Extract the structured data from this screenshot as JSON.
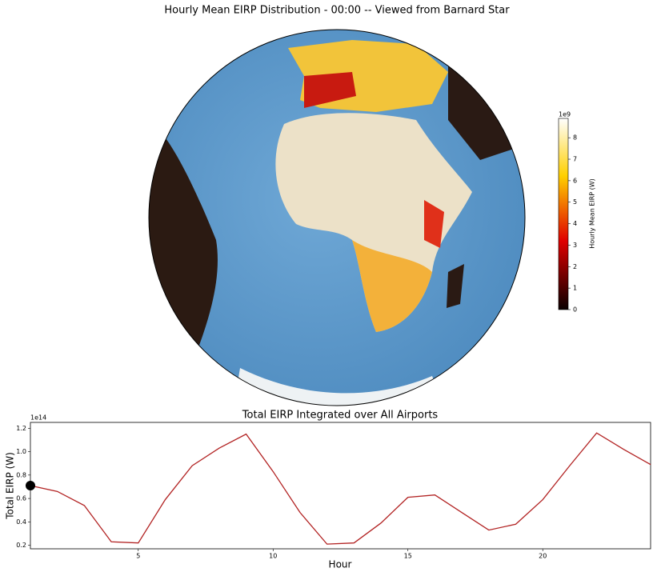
{
  "chart_data": [
    {
      "type": "map",
      "title": "Hourly Mean EIRP Distribution - 00:00 -- Viewed from Barnard Star",
      "colorbar": {
        "label": "Hourly Mean EIRP (W)",
        "offset_label": "1e9",
        "lim": [
          0,
          8.9
        ],
        "ticks": [
          0,
          1,
          2,
          3,
          4,
          5,
          6,
          7,
          8
        ]
      }
    },
    {
      "type": "line",
      "title": "Total EIRP Integrated over All Airports",
      "xlabel": "Hour",
      "ylabel": "Total EIRP (W)",
      "offset_label": "1e14",
      "x": [
        1,
        2,
        3,
        4,
        5,
        6,
        7,
        8,
        9,
        10,
        11,
        12,
        13,
        14,
        15,
        16,
        17,
        18,
        19,
        20,
        21,
        22,
        23,
        24
      ],
      "color": "#b22222",
      "values": [
        0.71,
        0.66,
        0.54,
        0.23,
        0.22,
        0.59,
        0.88,
        1.03,
        1.15,
        0.83,
        0.48,
        0.21,
        0.22,
        0.39,
        0.61,
        0.63,
        0.48,
        0.33,
        0.38,
        0.59,
        0.88,
        1.16,
        1.02,
        0.89
      ],
      "highlight_index": 0,
      "xlim": [
        1,
        24
      ],
      "ylim": [
        0.17,
        1.25
      ],
      "xticks": [
        5,
        10,
        15,
        20
      ],
      "yticks": [
        0.2,
        0.4,
        0.6,
        0.8,
        {
          "value": 1,
          "label": "1.0"
        },
        1.2
      ]
    }
  ]
}
